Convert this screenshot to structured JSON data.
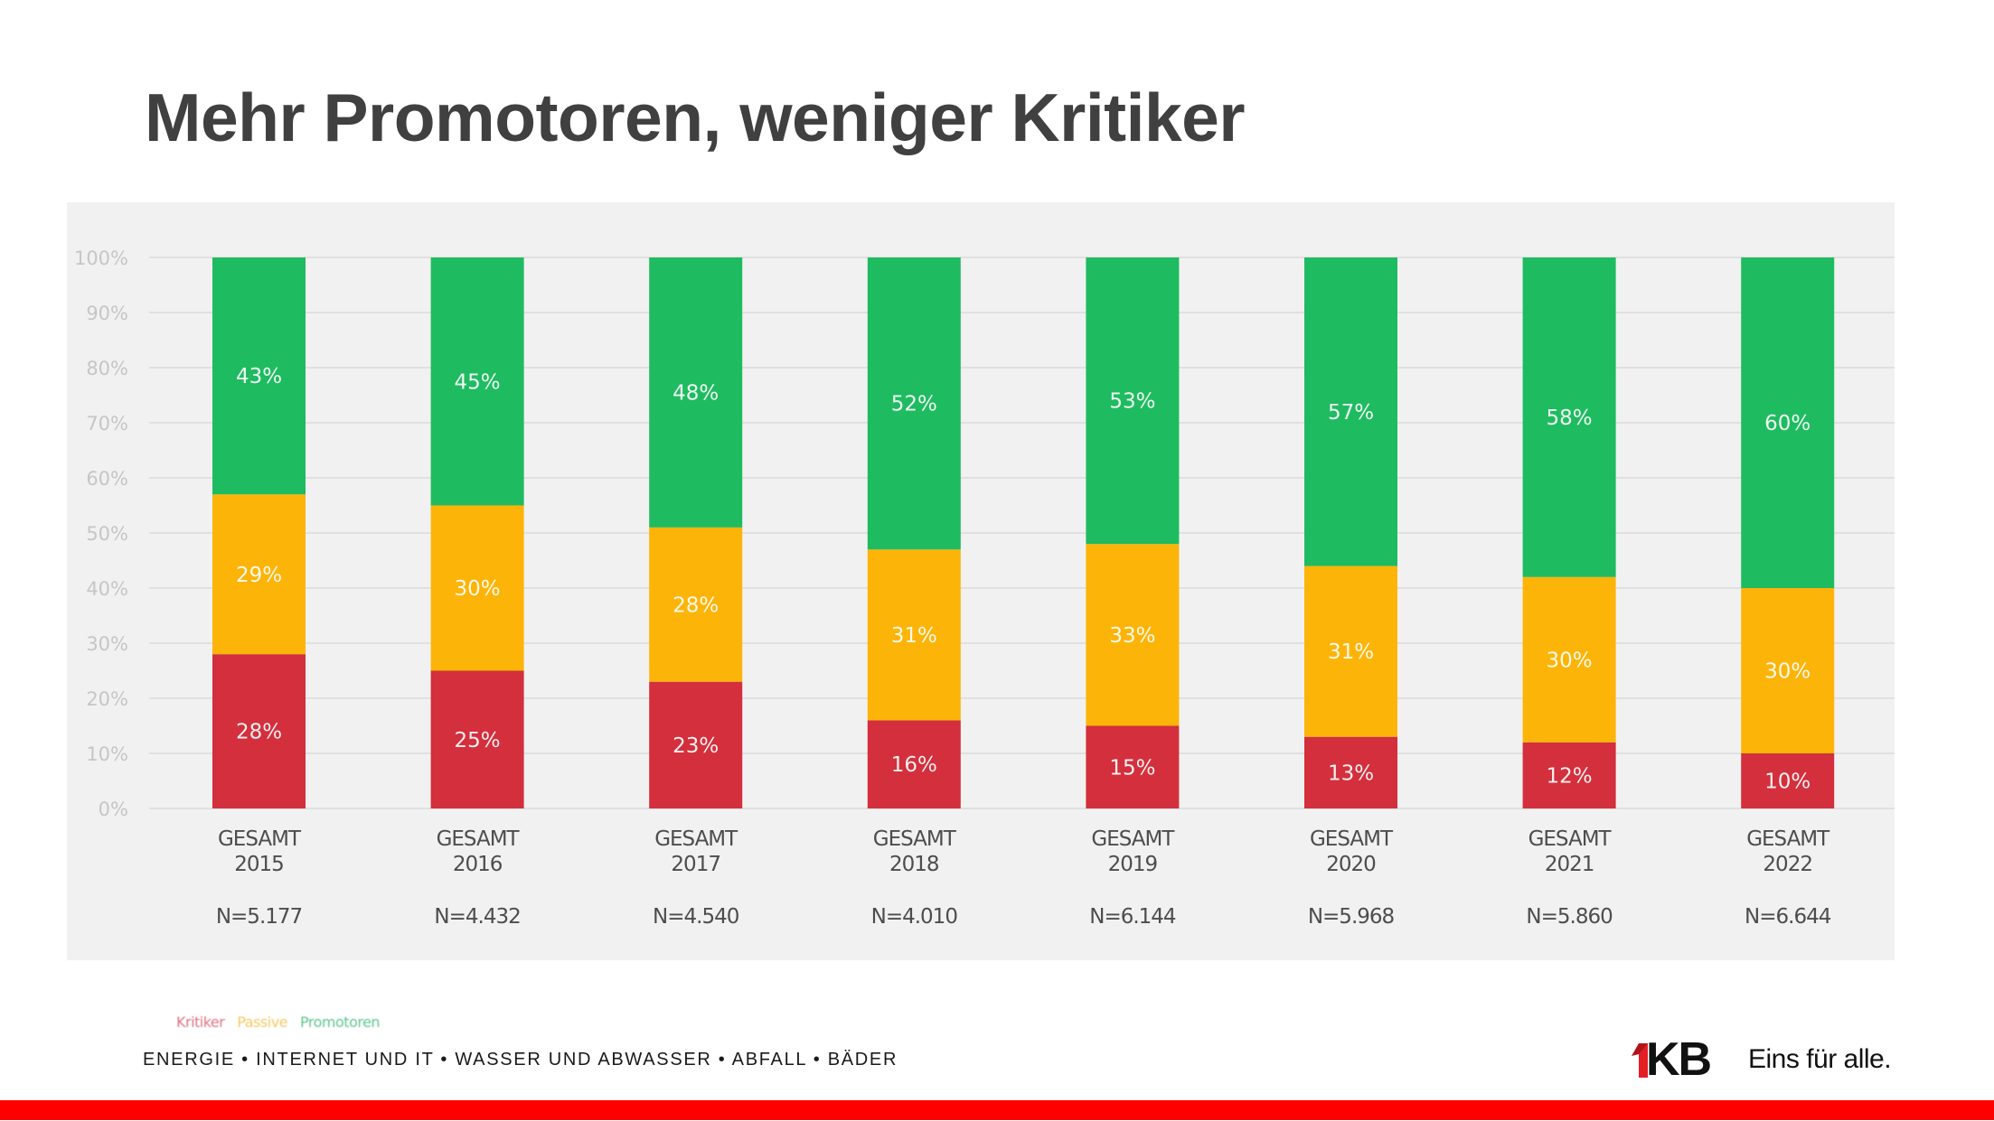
{
  "slide": {
    "title": "Mehr Promotoren, weniger Kritiker",
    "tagline": "ENERGIE • INTERNET UND IT • WASSER UND ABWASSER • ABFALL • BÄDER",
    "brand": {
      "logo_mark": "1",
      "logo_text": "KB",
      "slogan": "Eins für alle.",
      "accent_color": "#ff0000"
    }
  },
  "chart_data": {
    "type": "bar",
    "stacked": true,
    "title": "",
    "xlabel": "",
    "ylabel": "",
    "ylim": [
      0,
      100
    ],
    "grid": true,
    "y_ticks": [
      "0%",
      "10%",
      "20%",
      "30%",
      "40%",
      "50%",
      "60%",
      "70%",
      "80%",
      "90%",
      "100%"
    ],
    "categories": [
      "GESAMT 2015",
      "GESAMT 2016",
      "GESAMT 2017",
      "GESAMT 2018",
      "GESAMT 2019",
      "GESAMT 2020",
      "GESAMT 2021",
      "GESAMT 2022"
    ],
    "category_lines": [
      [
        "GESAMT",
        "2015"
      ],
      [
        "GESAMT",
        "2016"
      ],
      [
        "GESAMT",
        "2017"
      ],
      [
        "GESAMT",
        "2018"
      ],
      [
        "GESAMT",
        "2019"
      ],
      [
        "GESAMT",
        "2020"
      ],
      [
        "GESAMT",
        "2021"
      ],
      [
        "GESAMT",
        "2022"
      ]
    ],
    "sample_sizes": [
      "N=5.177",
      "N=4.432",
      "N=4.540",
      "N=4.010",
      "N=6.144",
      "N=5.968",
      "N=5.860",
      "N=6.644"
    ],
    "series": [
      {
        "name": "Kritiker",
        "color": "#d32f3c",
        "values": [
          28,
          25,
          23,
          16,
          15,
          13,
          12,
          10
        ]
      },
      {
        "name": "Passive",
        "color": "#fdb408",
        "values": [
          29,
          30,
          28,
          31,
          33,
          31,
          30,
          30
        ]
      },
      {
        "name": "Promotoren",
        "color": "#1fbb60",
        "values": [
          43,
          45,
          48,
          52,
          53,
          57,
          58,
          60
        ]
      }
    ],
    "legend": {
      "placement": "bottom-left",
      "entries": [
        {
          "label": "Kritiker",
          "color": "#e27583"
        },
        {
          "label": "Passive",
          "color": "#f9c862"
        },
        {
          "label": "Promotoren",
          "color": "#5fc98f"
        }
      ]
    }
  }
}
